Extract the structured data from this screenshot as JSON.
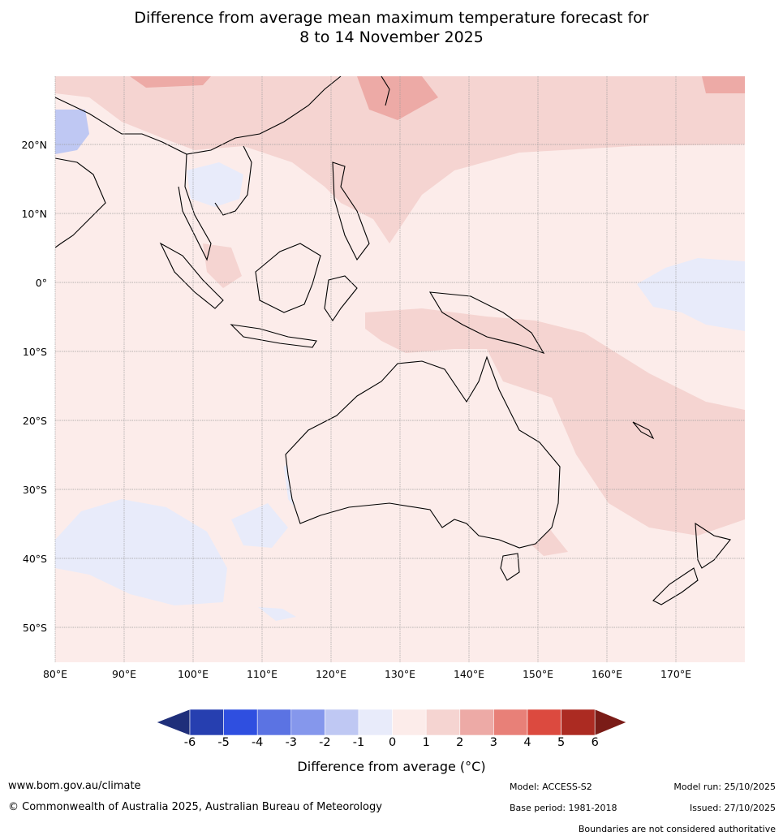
{
  "title": {
    "line1": "Difference from average mean maximum temperature forecast for",
    "line2": "8 to 14 November 2025"
  },
  "map": {
    "lat_labels": [
      "20°N",
      "10°N",
      "0°",
      "10°S",
      "20°S",
      "30°S",
      "40°S",
      "50°S"
    ],
    "lon_labels": [
      "80°E",
      "90°E",
      "100°E",
      "110°E",
      "120°E",
      "130°E",
      "140°E",
      "150°E",
      "160°E",
      "170°E"
    ]
  },
  "colorbar": {
    "title": "Difference from average ($^\\circ$C)",
    "title_display": "Difference from average (°C)",
    "tick_labels": [
      "-6",
      "-5",
      "-4",
      "-3",
      "-2",
      "-1",
      "0",
      "1",
      "2",
      "3",
      "4",
      "5",
      "6"
    ],
    "colors": [
      "#1f2f7a",
      "#263fb0",
      "#2f4fe0",
      "#5b73e3",
      "#8597ec",
      "#bfc8f3",
      "#e8ebfa",
      "#fcecea",
      "#f5d4d1",
      "#edaaa6",
      "#e88078",
      "#dc4a3f",
      "#ac2b22",
      "#7a1c17"
    ]
  },
  "footer": {
    "website": "www.bom.gov.au/climate",
    "copyright": "© Commonwealth of Australia 2025, Australian Bureau of Meteorology",
    "model": "Model: ACCESS-S2",
    "base_period": "Base period: 1981-2018",
    "model_run": "Model run: 25/10/2025",
    "issued": "Issued: 27/10/2025",
    "disclaimer": "Boundaries are not considered authoritative"
  }
}
